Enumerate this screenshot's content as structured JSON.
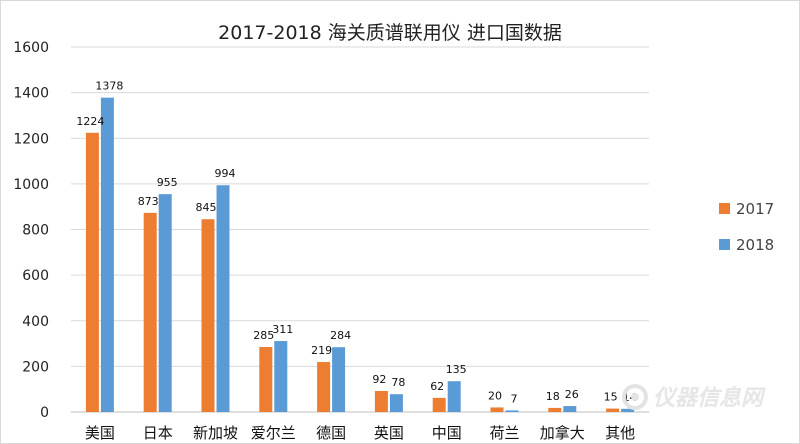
{
  "chart_data": {
    "type": "bar",
    "title": "2017-2018 海关质谱联用仪 进口国数据",
    "categories": [
      "美国",
      "日本",
      "新加坡",
      "爱尔兰",
      "德国",
      "英国",
      "中国",
      "荷兰",
      "加拿大",
      "其他"
    ],
    "series": [
      {
        "name": "2017",
        "values": [
          1224,
          873,
          845,
          285,
          219,
          92,
          62,
          20,
          18,
          15
        ],
        "color": "#ED7D31"
      },
      {
        "name": "2018",
        "values": [
          1378,
          955,
          994,
          311,
          284,
          78,
          135,
          7,
          26,
          14
        ],
        "color": "#5B9BD5"
      }
    ],
    "ylim": [
      0,
      1600
    ],
    "yticks": [
      0,
      200,
      400,
      600,
      800,
      1000,
      1200,
      1400,
      1600
    ],
    "grid": true,
    "legend": "right"
  },
  "watermark": {
    "text": "仪器信息网",
    "icon": "instrument-network-logo-icon"
  }
}
